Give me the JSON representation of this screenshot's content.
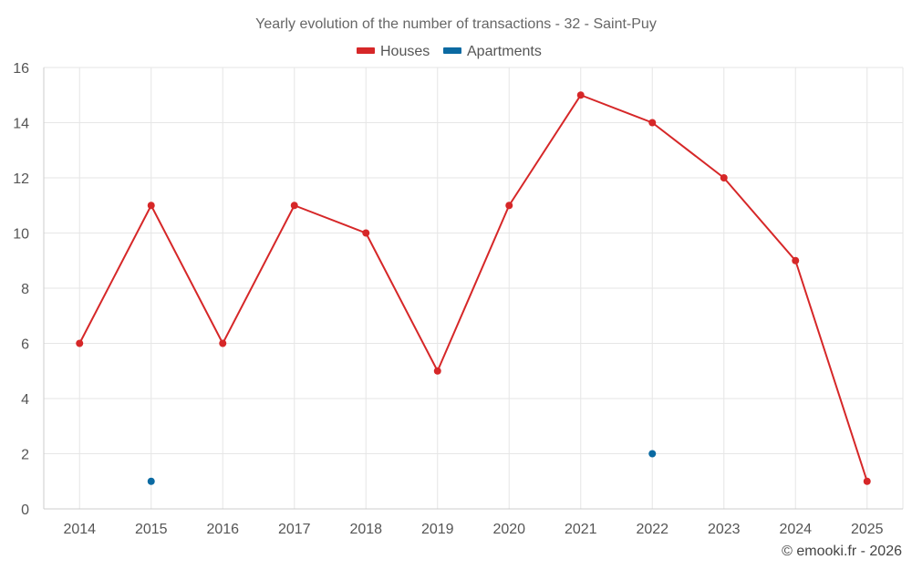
{
  "chart_data": {
    "type": "line",
    "title": "Yearly evolution of the number of transactions - 32 - Saint-Puy",
    "categories": [
      "2014",
      "2015",
      "2016",
      "2017",
      "2018",
      "2019",
      "2020",
      "2021",
      "2022",
      "2023",
      "2024",
      "2025"
    ],
    "series": [
      {
        "name": "Houses",
        "color": "#d62728",
        "values": [
          6,
          11,
          6,
          11,
          10,
          5,
          11,
          15,
          14,
          12,
          9,
          1
        ]
      },
      {
        "name": "Apartments",
        "color": "#0b6aa2",
        "values": [
          null,
          1,
          null,
          null,
          null,
          null,
          null,
          null,
          2,
          null,
          null,
          null
        ]
      }
    ],
    "ylim": [
      0,
      16
    ],
    "yticks": [
      "0",
      "2",
      "4",
      "6",
      "8",
      "10",
      "12",
      "14",
      "16"
    ],
    "xlabel": "",
    "ylabel": "",
    "grid": true,
    "legend": "top-center"
  },
  "credit": "© emooki.fr - 2026"
}
